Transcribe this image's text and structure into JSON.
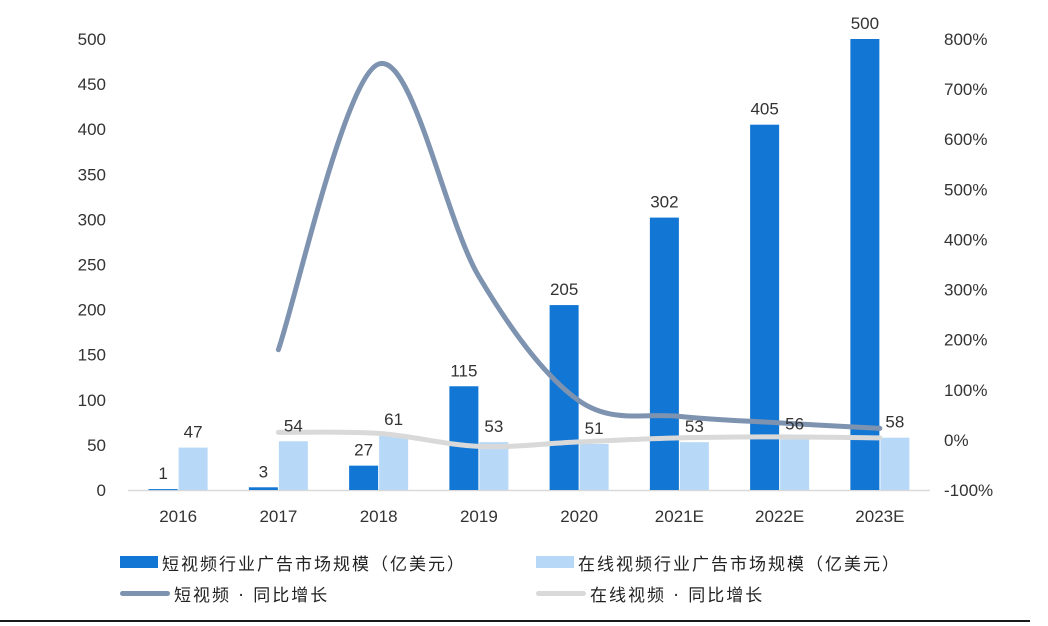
{
  "chart_data": {
    "type": "bar",
    "categories": [
      "2016",
      "2017",
      "2018",
      "2019",
      "2020",
      "2021E",
      "2022E",
      "2023E"
    ],
    "series": [
      {
        "name": "短视频行业广告市场规模（亿美元）",
        "kind": "bar",
        "axis": "left",
        "color": "#1176d4",
        "values": [
          1,
          3,
          27,
          115,
          205,
          302,
          405,
          500
        ]
      },
      {
        "name": "在线视频行业广告市场规模（亿美元）",
        "kind": "bar",
        "axis": "left",
        "color": "#b7d9f7",
        "values": [
          47,
          54,
          61,
          53,
          51,
          53,
          56,
          58
        ]
      },
      {
        "name": "短视频 · 同比增长",
        "kind": "line",
        "axis": "right",
        "color": "#7e93b0",
        "values": [
          null,
          1.8,
          7.5,
          3.26,
          0.78,
          0.47,
          0.34,
          0.23
        ]
      },
      {
        "name": "在线视频 · 同比增长",
        "kind": "line",
        "axis": "right",
        "color": "#d9d9d9",
        "values": [
          null,
          0.15,
          0.13,
          -0.13,
          -0.04,
          0.04,
          0.06,
          0.04
        ]
      }
    ],
    "y_left": {
      "ticks": [
        "0",
        "50",
        "100",
        "150",
        "200",
        "250",
        "300",
        "350",
        "400",
        "450",
        "500"
      ],
      "ylim": [
        0,
        500
      ]
    },
    "y_right": {
      "ticks": [
        "-100%",
        "0%",
        "100%",
        "200%",
        "300%",
        "400%",
        "500%",
        "600%",
        "700%",
        "800%"
      ],
      "ylim": [
        -1,
        8
      ]
    },
    "grid": false,
    "legend_position": "bottom",
    "title": "",
    "xlabel": "",
    "ylabel": ""
  }
}
